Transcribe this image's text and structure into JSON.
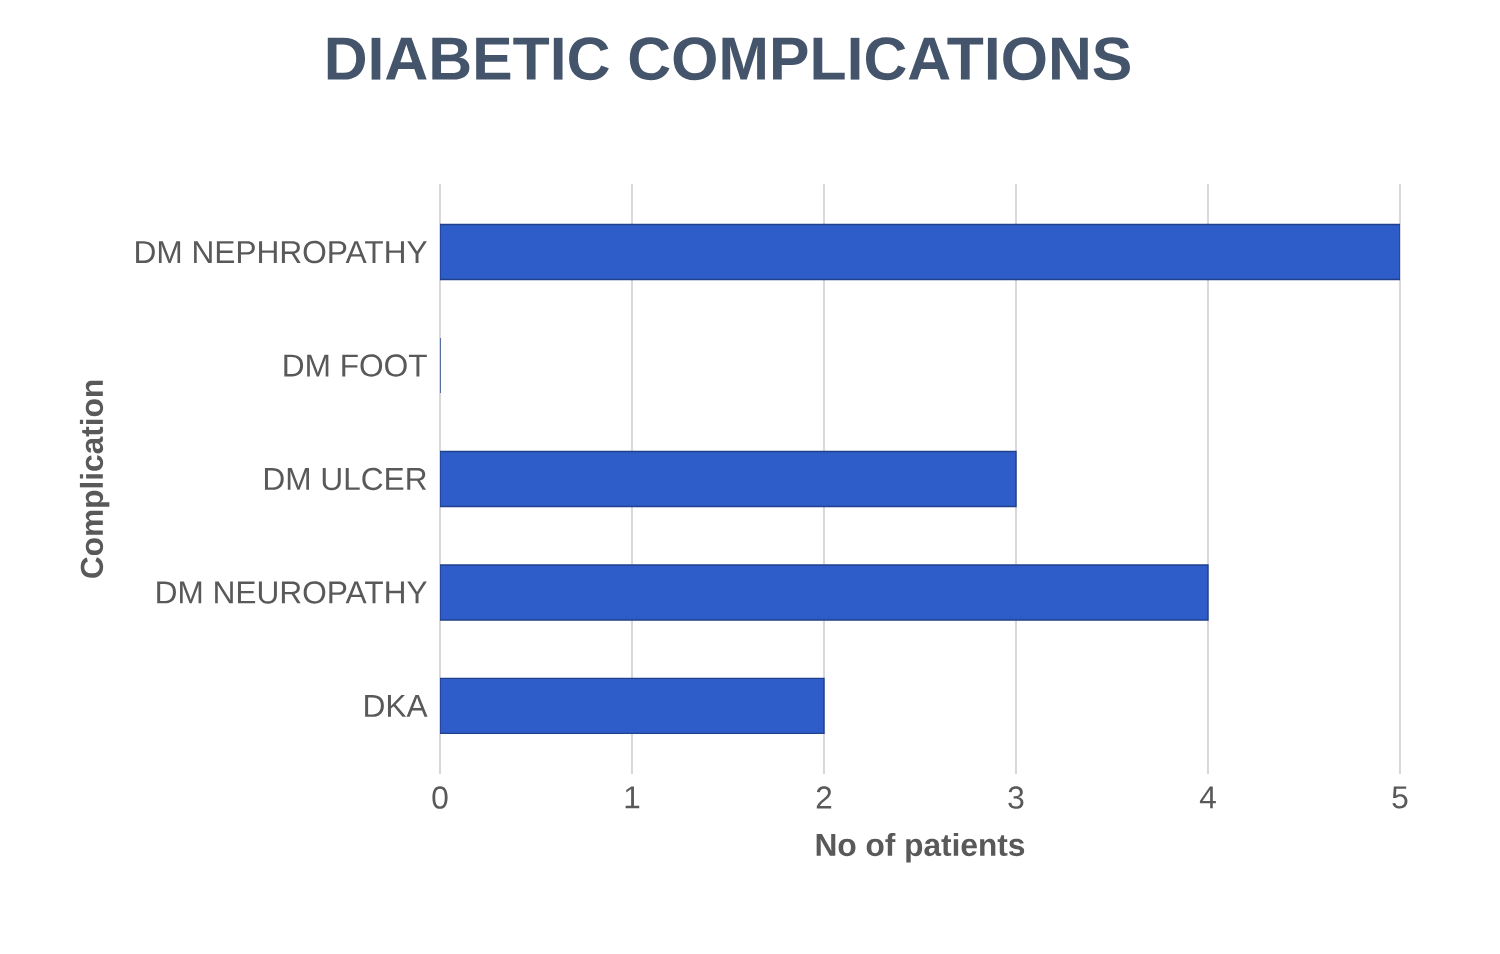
{
  "chart_data": {
    "type": "bar",
    "orientation": "horizontal",
    "title": "DIABETIC COMPLICATIONS",
    "xlabel": "No of patients",
    "ylabel": "Complication",
    "categories": [
      "DM NEPHROPATHY",
      "DM FOOT",
      "DM ULCER",
      "DM NEUROPATHY",
      "DKA"
    ],
    "values": [
      5,
      0,
      3,
      4,
      2
    ],
    "color": "#2e5cc8",
    "xlim": [
      0,
      5
    ],
    "xticks": [
      0,
      1,
      2,
      3,
      4,
      5
    ],
    "grid": "x"
  }
}
